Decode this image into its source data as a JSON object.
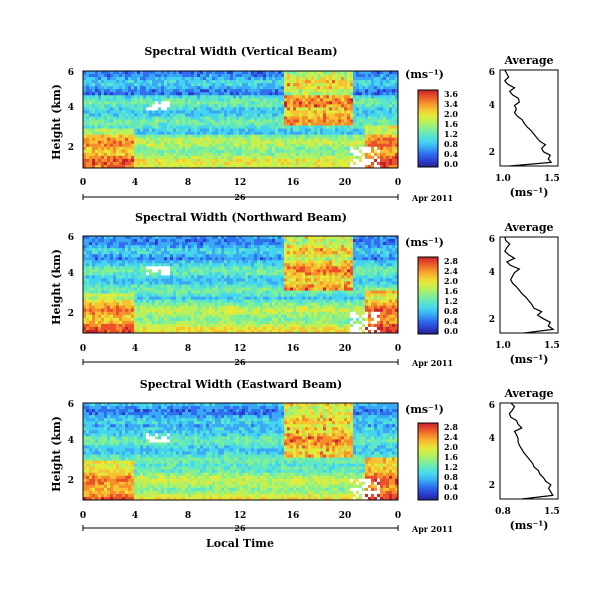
{
  "figure": {
    "date_label": "Apr 2011",
    "x_axis_label": "Local Time",
    "day_label": "26",
    "colorbar_unit": "(ms⁻¹)",
    "colorbar_colors": [
      "#22228a",
      "#2a3fd0",
      "#2f6ff0",
      "#3aa8f5",
      "#45d4ef",
      "#60e7c4",
      "#86ef8e",
      "#b7f15e",
      "#e3ea3a",
      "#f7c332",
      "#f58f2a",
      "#e8512b",
      "#c7232c"
    ]
  },
  "chart_data": [
    {
      "type": "heatmap",
      "title": "Spectral Width (Vertical Beam)",
      "ylabel": "Height (km)",
      "xlim": [
        0,
        24
      ],
      "ylim": [
        0.6,
        6
      ],
      "x_ticks": [
        "0",
        "4",
        "8",
        "12",
        "16",
        "20",
        "0"
      ],
      "y_ticks": [
        "2",
        "4",
        "6"
      ],
      "colorbar": {
        "unit": "(ms⁻¹)",
        "ticks": [
          "3.6",
          "3.4",
          "2.0",
          "1.6",
          "1.2",
          "0.8",
          "0.4",
          "0.0"
        ],
        "range": [
          0.0,
          3.6
        ]
      },
      "average_profile": {
        "title": "Average",
        "xlabel": "(ms⁻¹)",
        "x_ticks": [
          "1.0",
          "1.5"
        ],
        "xlim": [
          0.95,
          1.55
        ],
        "y_ticks": [
          "2",
          "4",
          "6"
        ],
        "ylim": [
          0.6,
          6
        ],
        "heights": [
          0.6,
          0.8,
          1.0,
          1.2,
          1.4,
          1.6,
          1.8,
          2.0,
          2.2,
          2.4,
          2.6,
          2.8,
          3.0,
          3.2,
          3.4,
          3.6,
          3.8,
          4.0,
          4.2,
          4.4,
          4.6,
          4.8,
          5.0,
          5.2,
          5.4,
          5.6,
          5.8,
          6.0
        ],
        "values": [
          1.05,
          1.48,
          1.45,
          1.47,
          1.4,
          1.38,
          1.42,
          1.36,
          1.33,
          1.3,
          1.27,
          1.23,
          1.2,
          1.18,
          1.13,
          1.1,
          1.12,
          1.1,
          1.15,
          1.14,
          1.08,
          1.05,
          1.1,
          1.03,
          1.0,
          1.04,
          1.02,
          1.0
        ]
      }
    },
    {
      "type": "heatmap",
      "title": "Spectral Width (Northward Beam)",
      "ylabel": "Height (km)",
      "xlim": [
        0,
        24
      ],
      "ylim": [
        0.6,
        6
      ],
      "x_ticks": [
        "0",
        "4",
        "8",
        "12",
        "16",
        "20",
        "0"
      ],
      "y_ticks": [
        "2",
        "4",
        "6"
      ],
      "colorbar": {
        "unit": "(ms⁻¹)",
        "ticks": [
          "2.8",
          "2.4",
          "2.0",
          "1.6",
          "1.2",
          "0.8",
          "0.4",
          "0.0"
        ],
        "range": [
          0.0,
          2.8
        ]
      },
      "average_profile": {
        "title": "Average",
        "xlabel": "(ms⁻¹)",
        "x_ticks": [
          "1.0",
          "1.5"
        ],
        "xlim": [
          0.95,
          1.55
        ],
        "y_ticks": [
          "2",
          "4",
          "6"
        ],
        "ylim": [
          0.6,
          6
        ],
        "heights": [
          0.6,
          0.8,
          1.0,
          1.2,
          1.4,
          1.6,
          1.8,
          2.0,
          2.2,
          2.4,
          2.6,
          2.8,
          3.0,
          3.2,
          3.4,
          3.6,
          3.8,
          4.0,
          4.2,
          4.4,
          4.6,
          4.8,
          5.0,
          5.2,
          5.4,
          5.6,
          5.8,
          6.0
        ],
        "values": [
          1.2,
          1.5,
          1.45,
          1.47,
          1.4,
          1.34,
          1.38,
          1.3,
          1.28,
          1.25,
          1.22,
          1.18,
          1.15,
          1.12,
          1.08,
          1.06,
          1.08,
          1.1,
          1.15,
          1.06,
          1.02,
          1.1,
          1.04,
          1.0,
          1.02,
          1.05,
          1.01,
          1.0
        ]
      }
    },
    {
      "type": "heatmap",
      "title": "Spectral Width (Eastward Beam)",
      "ylabel": "Height (km)",
      "xlim": [
        0,
        24
      ],
      "ylim": [
        0.6,
        6
      ],
      "x_ticks": [
        "0",
        "4",
        "8",
        "12",
        "16",
        "20",
        "0"
      ],
      "y_ticks": [
        "2",
        "4",
        "6"
      ],
      "colorbar": {
        "unit": "(ms⁻¹)",
        "ticks": [
          "2.8",
          "2.4",
          "2.0",
          "1.6",
          "1.2",
          "0.8",
          "0.4",
          "0.0"
        ],
        "range": [
          0.0,
          2.8
        ]
      },
      "average_profile": {
        "title": "Average",
        "xlabel": "(ms⁻¹)",
        "x_ticks": [
          "0.8",
          "1.5"
        ],
        "xlim": [
          0.75,
          1.55
        ],
        "y_ticks": [
          "2",
          "4",
          "6"
        ],
        "ylim": [
          0.6,
          6
        ],
        "heights": [
          0.6,
          0.8,
          1.0,
          1.2,
          1.4,
          1.6,
          1.8,
          2.0,
          2.2,
          2.4,
          2.6,
          2.8,
          3.0,
          3.2,
          3.4,
          3.6,
          3.8,
          4.0,
          4.2,
          4.4,
          4.6,
          4.8,
          5.0,
          5.2,
          5.4,
          5.6,
          5.8,
          6.0
        ],
        "values": [
          1.05,
          1.48,
          1.45,
          1.42,
          1.45,
          1.38,
          1.35,
          1.3,
          1.28,
          1.22,
          1.2,
          1.16,
          1.12,
          1.08,
          1.05,
          1.02,
          1.0,
          1.0,
          0.98,
          0.95,
          1.05,
          1.0,
          0.98,
          0.9,
          0.88,
          0.92,
          0.95,
          0.9
        ]
      }
    }
  ]
}
